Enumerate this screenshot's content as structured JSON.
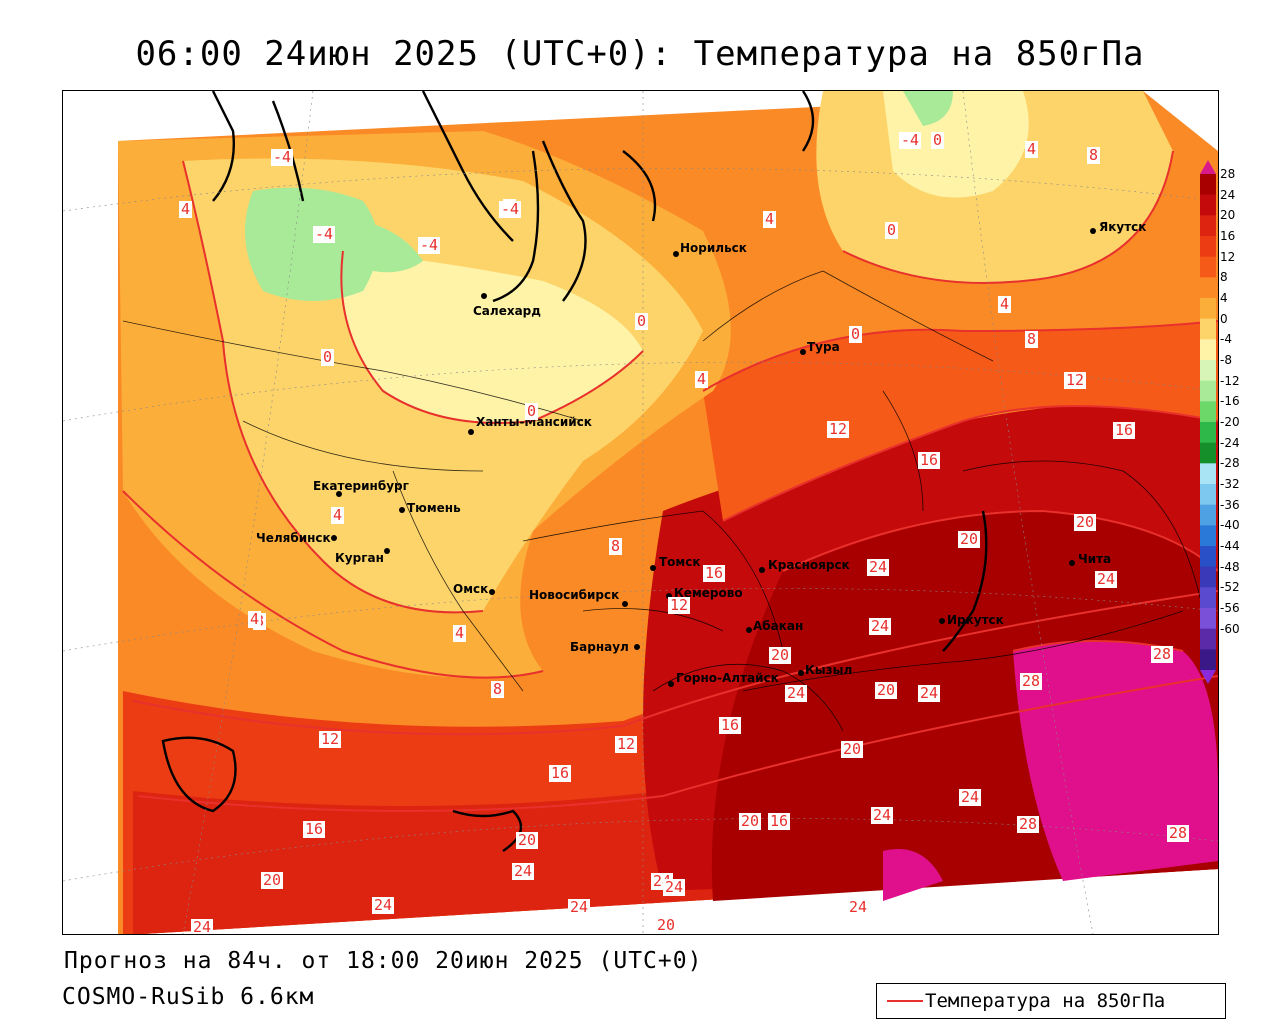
{
  "title": "06:00 24июн 2025 (UTC+0): Температура на 850гПа",
  "forecast_line": "Прогноз на 84ч. от 18:00 20июн 2025 (UTC+0)",
  "model_line": "COSMO-RuSib 6.6км",
  "legend": {
    "label": "Температура на 850гПа",
    "line_color": "#e8302c"
  },
  "colorbar": {
    "ticks": [
      "28",
      "24",
      "20",
      "16",
      "12",
      "8",
      "4",
      "0",
      "-4",
      "-8",
      "-12",
      "-16",
      "-20",
      "-24",
      "-28",
      "-32",
      "-36",
      "-40",
      "-44",
      "-48",
      "-52",
      "-56",
      "-60"
    ],
    "colors": [
      "#a80000",
      "#c40a0a",
      "#dc2410",
      "#ec3c14",
      "#f55a18",
      "#fa8a26",
      "#fcae3a",
      "#fdd46a",
      "#fff3a8",
      "#d8f5b8",
      "#a8ea98",
      "#6cd86a",
      "#2fb84a",
      "#158f2a",
      "#a8e4f4",
      "#7cc8ee",
      "#4ea2e4",
      "#2a78d8",
      "#2a50c8",
      "#3a3ab8",
      "#5a4ad0",
      "#7a50d8",
      "#5a2aa8",
      "#3a1888"
    ],
    "top_color": "#d81a8a",
    "bottom_color": "#8a2ad8"
  },
  "cities": [
    {
      "name": "Норильск"
    },
    {
      "name": "Салехард"
    },
    {
      "name": "Тура"
    },
    {
      "name": "Якутск"
    },
    {
      "name": "Ханты-Мансийск"
    },
    {
      "name": "Екатеринбург"
    },
    {
      "name": "Тюмень"
    },
    {
      "name": "Челябинск"
    },
    {
      "name": "Курган"
    },
    {
      "name": "Омск"
    },
    {
      "name": "Новосибирск"
    },
    {
      "name": "Томск"
    },
    {
      "name": "Кемерово"
    },
    {
      "name": "Барнаул"
    },
    {
      "name": "Горно-Алтайск"
    },
    {
      "name": "Абакан"
    },
    {
      "name": "Кызыл"
    },
    {
      "name": "Красноярск"
    },
    {
      "name": "Иркутск"
    },
    {
      "name": "Чита"
    }
  ],
  "contour_labels": [
    "-4",
    "-4",
    "-4",
    "4",
    "4",
    "4",
    "-4",
    "0",
    "4",
    "8",
    "0",
    "0",
    "4",
    "0",
    "8",
    "12",
    "12",
    "16",
    "16",
    "20",
    "20",
    "24",
    "24",
    "28",
    "28",
    "28",
    "24",
    "20",
    "24",
    "20",
    "24",
    "20",
    "16",
    "12",
    "12",
    "16",
    "8",
    "8",
    "4",
    "8",
    "4",
    "16",
    "12",
    "16",
    "20",
    "20",
    "24",
    "24",
    "24",
    "24",
    "28",
    "24",
    "24",
    "20",
    "24",
    "24",
    "20",
    "24",
    "16",
    "0",
    "0",
    "4",
    "-4",
    "4"
  ]
}
